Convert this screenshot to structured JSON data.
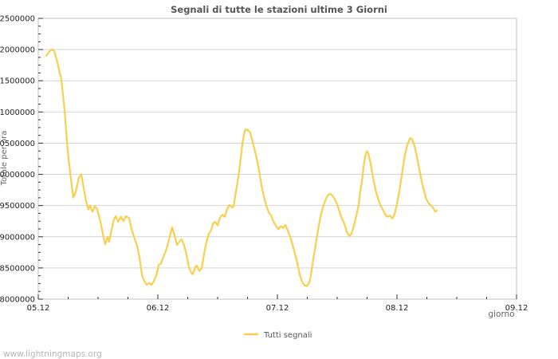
{
  "footer": {
    "watermark": "www.lightningmaps.org"
  },
  "colors": {
    "series_yellow": "#f9cf4e",
    "grid": "#d4d4d4",
    "border": "#c0c0c0",
    "tick": "#333333",
    "tick_label": "#222222",
    "title_text": "#555555",
    "axis_title_text": "#666666",
    "legend_text": "#555555",
    "watermark_text": "#b4b4b4"
  },
  "chart_data": {
    "type": "line",
    "title": "Segnali di tutte le stazioni ultime 3 Giorni",
    "xlabel": "giorno",
    "ylabel": "Totale per ora",
    "x_tick_labels": [
      "05.12",
      "06.12",
      "07.12",
      "08.12",
      "09.12"
    ],
    "x_range_days": [
      0,
      4
    ],
    "x_minor_step_days": 0.25,
    "ylim": [
      8000000,
      12500000
    ],
    "y_tick_step": 500000,
    "y_minor_step": 125000,
    "grid": true,
    "legend_position": "bottom-center",
    "legend": [
      {
        "label": "Tutti segnali",
        "color": "#f9cf4e"
      }
    ],
    "series": [
      {
        "name": "Tutti segnali",
        "color": "#f9cf4e",
        "points": [
          [
            0.067,
            11900000
          ],
          [
            0.093,
            11970000
          ],
          [
            0.113,
            12000000
          ],
          [
            0.133,
            11980000
          ],
          [
            0.16,
            11790000
          ],
          [
            0.193,
            11520000
          ],
          [
            0.22,
            11030000
          ],
          [
            0.247,
            10370000
          ],
          [
            0.273,
            9920000
          ],
          [
            0.293,
            9630000
          ],
          [
            0.313,
            9720000
          ],
          [
            0.34,
            9950000
          ],
          [
            0.36,
            10000000
          ],
          [
            0.38,
            9780000
          ],
          [
            0.4,
            9570000
          ],
          [
            0.42,
            9440000
          ],
          [
            0.433,
            9500000
          ],
          [
            0.453,
            9400000
          ],
          [
            0.473,
            9490000
          ],
          [
            0.493,
            9440000
          ],
          [
            0.52,
            9240000
          ],
          [
            0.547,
            8980000
          ],
          [
            0.56,
            8880000
          ],
          [
            0.58,
            9000000
          ],
          [
            0.593,
            8920000
          ],
          [
            0.613,
            9110000
          ],
          [
            0.633,
            9280000
          ],
          [
            0.647,
            9330000
          ],
          [
            0.667,
            9240000
          ],
          [
            0.693,
            9320000
          ],
          [
            0.713,
            9250000
          ],
          [
            0.733,
            9330000
          ],
          [
            0.76,
            9300000
          ],
          [
            0.78,
            9120000
          ],
          [
            0.807,
            8960000
          ],
          [
            0.827,
            8850000
          ],
          [
            0.847,
            8660000
          ],
          [
            0.867,
            8380000
          ],
          [
            0.887,
            8290000
          ],
          [
            0.907,
            8230000
          ],
          [
            0.927,
            8260000
          ],
          [
            0.947,
            8230000
          ],
          [
            0.967,
            8290000
          ],
          [
            0.987,
            8380000
          ],
          [
            1.007,
            8550000
          ],
          [
            1.027,
            8570000
          ],
          [
            1.047,
            8680000
          ],
          [
            1.067,
            8770000
          ],
          [
            1.087,
            8900000
          ],
          [
            1.107,
            9060000
          ],
          [
            1.12,
            9150000
          ],
          [
            1.14,
            9020000
          ],
          [
            1.16,
            8870000
          ],
          [
            1.18,
            8920000
          ],
          [
            1.2,
            8960000
          ],
          [
            1.22,
            8860000
          ],
          [
            1.24,
            8710000
          ],
          [
            1.26,
            8510000
          ],
          [
            1.28,
            8420000
          ],
          [
            1.293,
            8400000
          ],
          [
            1.313,
            8510000
          ],
          [
            1.327,
            8540000
          ],
          [
            1.347,
            8450000
          ],
          [
            1.367,
            8500000
          ],
          [
            1.387,
            8730000
          ],
          [
            1.407,
            8920000
          ],
          [
            1.427,
            9050000
          ],
          [
            1.447,
            9110000
          ],
          [
            1.46,
            9210000
          ],
          [
            1.48,
            9240000
          ],
          [
            1.5,
            9180000
          ],
          [
            1.52,
            9310000
          ],
          [
            1.54,
            9350000
          ],
          [
            1.56,
            9320000
          ],
          [
            1.58,
            9450000
          ],
          [
            1.6,
            9510000
          ],
          [
            1.62,
            9470000
          ],
          [
            1.633,
            9480000
          ],
          [
            1.653,
            9730000
          ],
          [
            1.667,
            9880000
          ],
          [
            1.68,
            10050000
          ],
          [
            1.693,
            10260000
          ],
          [
            1.707,
            10490000
          ],
          [
            1.72,
            10640000
          ],
          [
            1.733,
            10720000
          ],
          [
            1.753,
            10710000
          ],
          [
            1.773,
            10670000
          ],
          [
            1.793,
            10520000
          ],
          [
            1.813,
            10370000
          ],
          [
            1.827,
            10250000
          ],
          [
            1.847,
            10050000
          ],
          [
            1.867,
            9820000
          ],
          [
            1.887,
            9640000
          ],
          [
            1.907,
            9500000
          ],
          [
            1.927,
            9390000
          ],
          [
            1.947,
            9340000
          ],
          [
            1.967,
            9240000
          ],
          [
            1.987,
            9180000
          ],
          [
            2.007,
            9120000
          ],
          [
            2.027,
            9170000
          ],
          [
            2.047,
            9140000
          ],
          [
            2.067,
            9190000
          ],
          [
            2.087,
            9090000
          ],
          [
            2.107,
            9000000
          ],
          [
            2.127,
            8870000
          ],
          [
            2.147,
            8730000
          ],
          [
            2.167,
            8580000
          ],
          [
            2.187,
            8390000
          ],
          [
            2.207,
            8280000
          ],
          [
            2.227,
            8220000
          ],
          [
            2.247,
            8210000
          ],
          [
            2.267,
            8270000
          ],
          [
            2.28,
            8380000
          ],
          [
            2.3,
            8640000
          ],
          [
            2.32,
            8870000
          ],
          [
            2.34,
            9110000
          ],
          [
            2.36,
            9320000
          ],
          [
            2.38,
            9470000
          ],
          [
            2.4,
            9580000
          ],
          [
            2.42,
            9660000
          ],
          [
            2.44,
            9690000
          ],
          [
            2.46,
            9660000
          ],
          [
            2.48,
            9600000
          ],
          [
            2.5,
            9520000
          ],
          [
            2.52,
            9400000
          ],
          [
            2.54,
            9290000
          ],
          [
            2.56,
            9210000
          ],
          [
            2.58,
            9080000
          ],
          [
            2.6,
            9010000
          ],
          [
            2.62,
            9050000
          ],
          [
            2.64,
            9180000
          ],
          [
            2.66,
            9340000
          ],
          [
            2.68,
            9510000
          ],
          [
            2.693,
            9730000
          ],
          [
            2.707,
            9890000
          ],
          [
            2.72,
            10110000
          ],
          [
            2.733,
            10280000
          ],
          [
            2.747,
            10370000
          ],
          [
            2.76,
            10340000
          ],
          [
            2.78,
            10170000
          ],
          [
            2.8,
            9950000
          ],
          [
            2.82,
            9760000
          ],
          [
            2.84,
            9620000
          ],
          [
            2.86,
            9510000
          ],
          [
            2.88,
            9440000
          ],
          [
            2.9,
            9360000
          ],
          [
            2.92,
            9320000
          ],
          [
            2.94,
            9340000
          ],
          [
            2.96,
            9290000
          ],
          [
            2.98,
            9360000
          ],
          [
            3.0,
            9530000
          ],
          [
            3.02,
            9730000
          ],
          [
            3.04,
            9980000
          ],
          [
            3.06,
            10240000
          ],
          [
            3.08,
            10430000
          ],
          [
            3.1,
            10540000
          ],
          [
            3.113,
            10580000
          ],
          [
            3.127,
            10560000
          ],
          [
            3.147,
            10460000
          ],
          [
            3.167,
            10280000
          ],
          [
            3.187,
            10080000
          ],
          [
            3.207,
            9890000
          ],
          [
            3.227,
            9730000
          ],
          [
            3.247,
            9600000
          ],
          [
            3.267,
            9530000
          ],
          [
            3.287,
            9500000
          ],
          [
            3.307,
            9450000
          ],
          [
            3.32,
            9400000
          ],
          [
            3.333,
            9420000
          ]
        ]
      }
    ]
  }
}
